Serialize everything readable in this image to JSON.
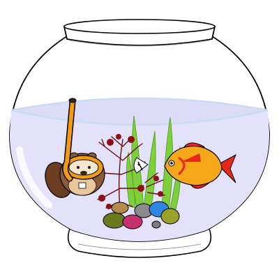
{
  "scene": {
    "subject": "fishbowl-illustration",
    "colors": {
      "background": "#ffffff",
      "outline": "#000000",
      "water": "#e4e2fb",
      "water_surface": "#c9dcf3",
      "fish_body": "#f6a81a",
      "fish_fin": "#e8261a",
      "seaweed_green": "#7fcf3b",
      "red_plant": "#8e0f12",
      "beaver_fur": "#8a5a3a",
      "mask_orange": "#f29a12"
    },
    "pebbles": [
      {
        "color": "#6b7a1e"
      },
      {
        "color": "#c6306e"
      },
      {
        "color": "#8b8b8b"
      },
      {
        "color": "#2f86e0"
      },
      {
        "color": "#9aa22a"
      },
      {
        "color": "#b28a4a"
      },
      {
        "color": "#7e7e7e"
      }
    ]
  }
}
